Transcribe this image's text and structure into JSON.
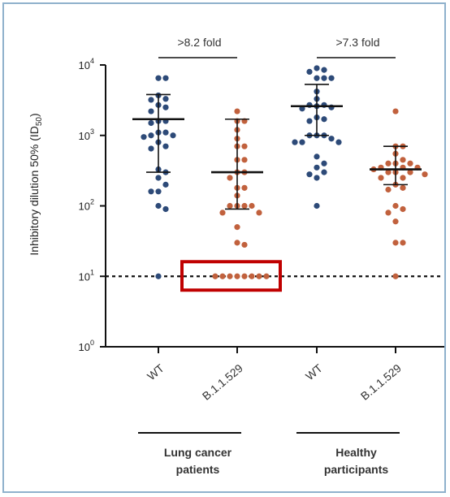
{
  "chart_data": {
    "type": "scatter",
    "ylabel": "Inhibitory dilution 50% (ID50)",
    "ylabel_main": "Inhibitory dilution 50% (ID",
    "ylabel_sub": "50",
    "ylabel_end": ")",
    "y_scale": "log",
    "ylim": [
      1,
      10000
    ],
    "yticks": [
      {
        "value": 1,
        "base": "10",
        "exp": "0"
      },
      {
        "value": 10,
        "base": "10",
        "exp": "1"
      },
      {
        "value": 100,
        "base": "10",
        "exp": "2"
      },
      {
        "value": 1000,
        "base": "10",
        "exp": "3"
      },
      {
        "value": 10000,
        "base": "10",
        "exp": "4"
      }
    ],
    "threshold_line": 10,
    "categories": [
      "WT",
      "B.1.1.529",
      "WT",
      "B.1.1.529"
    ],
    "groups": [
      {
        "label_line1": "Lung cancer",
        "label_line2": "patients",
        "categories": [
          0,
          1
        ]
      },
      {
        "label_line1": "Healthy",
        "label_line2": "participants",
        "categories": [
          2,
          3
        ]
      }
    ],
    "series": [
      {
        "category": 0,
        "color": "#2d4a78",
        "median": 1700,
        "err_low": 300,
        "err_high": 3800,
        "values": [
          6500,
          6500,
          3700,
          3300,
          3200,
          2700,
          2500,
          2200,
          1600,
          1600,
          1500,
          1100,
          1100,
          1000,
          1000,
          950,
          800,
          700,
          650,
          330,
          300,
          250,
          200,
          160,
          160,
          100,
          90,
          10
        ]
      },
      {
        "category": 1,
        "color": "#c1613d",
        "median": 300,
        "err_low": 90,
        "err_high": 1700,
        "values": [
          2200,
          1600,
          1600,
          1200,
          900,
          700,
          700,
          450,
          450,
          300,
          300,
          250,
          180,
          180,
          140,
          100,
          100,
          100,
          100,
          80,
          80,
          50,
          30,
          28,
          10,
          10,
          10,
          10,
          10,
          10,
          10,
          10
        ]
      },
      {
        "category": 2,
        "color": "#2d4a78",
        "median": 2600,
        "err_low": 1000,
        "err_high": 5300,
        "values": [
          9000,
          8500,
          8000,
          6500,
          6500,
          6500,
          4200,
          3300,
          2700,
          2700,
          2600,
          2500,
          2400,
          1800,
          1700,
          1600,
          1000,
          1000,
          1000,
          900,
          800,
          800,
          800,
          500,
          400,
          350,
          300,
          280,
          250,
          100
        ]
      },
      {
        "category": 3,
        "color": "#c1613d",
        "median": 330,
        "err_low": 200,
        "err_high": 700,
        "values": [
          2200,
          700,
          700,
          550,
          450,
          400,
          400,
          400,
          350,
          350,
          350,
          330,
          300,
          300,
          300,
          280,
          250,
          250,
          200,
          180,
          170,
          100,
          90,
          80,
          60,
          30,
          30,
          10
        ]
      }
    ],
    "annotations": [
      {
        "text": ">8.2 fold",
        "from": 0,
        "to": 1
      },
      {
        "text": ">7.3 fold",
        "from": 2,
        "to": 3
      }
    ],
    "highlight_box": {
      "from": 1,
      "around_value": 10,
      "color": "#c00000"
    }
  }
}
